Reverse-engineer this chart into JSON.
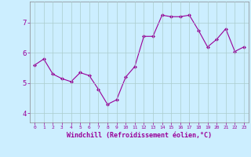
{
  "x": [
    0,
    1,
    2,
    3,
    4,
    5,
    6,
    7,
    8,
    9,
    10,
    11,
    12,
    13,
    14,
    15,
    16,
    17,
    18,
    19,
    20,
    21,
    22,
    23
  ],
  "y": [
    5.6,
    5.8,
    5.3,
    5.15,
    5.05,
    5.35,
    5.25,
    4.8,
    4.3,
    4.45,
    5.2,
    5.55,
    6.55,
    6.55,
    7.25,
    7.2,
    7.2,
    7.25,
    6.75,
    6.2,
    6.45,
    6.8,
    6.05,
    6.2
  ],
  "line_color": "#990099",
  "marker": "D",
  "marker_size": 2.0,
  "bg_color": "#cceeff",
  "grid_color": "#aacccc",
  "xlabel": "Windchill (Refroidissement éolien,°C)",
  "xlabel_color": "#990099",
  "tick_color": "#990099",
  "yticks": [
    4,
    5,
    6,
    7
  ],
  "xticks": [
    0,
    1,
    2,
    3,
    4,
    5,
    6,
    7,
    8,
    9,
    10,
    11,
    12,
    13,
    14,
    15,
    16,
    17,
    18,
    19,
    20,
    21,
    22,
    23
  ],
  "ylim": [
    3.7,
    7.7
  ],
  "xlim": [
    -0.5,
    23.5
  ]
}
